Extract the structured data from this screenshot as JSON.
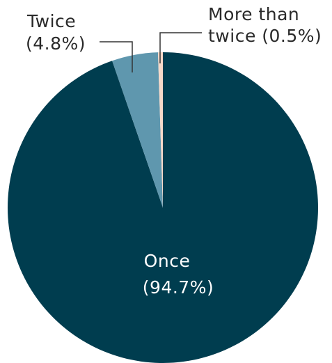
{
  "chart_data": {
    "type": "pie",
    "title": "",
    "start_angle_deg": 0,
    "direction": "clockwise",
    "slices": [
      {
        "label": "Once",
        "value_label": "(94.7%)",
        "value": 94.7,
        "color": "#003d4f",
        "label_color": "#ffffff"
      },
      {
        "label": "Twice",
        "value_label": "(4.8%)",
        "value": 4.8,
        "color": "#5f97ae",
        "label_color": "#2a2a2a"
      },
      {
        "label": "More than",
        "label_line2": "twice (0.5%)",
        "value": 0.5,
        "color": "#f7d9c9",
        "label_color": "#2a2a2a"
      }
    ]
  }
}
